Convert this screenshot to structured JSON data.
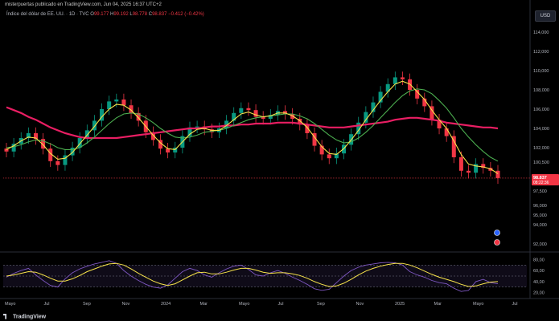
{
  "header": {
    "publisher": "misterpuertas publicado en TradingView.com, Jun 04, 2025 16:37 UTC+2"
  },
  "legend": {
    "symbol": "Índice del dólar de EE. UU. · 1D · TVC",
    "o_label": "O",
    "o": "99.177",
    "h_label": "H",
    "h": "99.192",
    "l_label": "L",
    "l": "98.778",
    "c_label": "C",
    "c": "98.837",
    "change": "−0.412 (−0.42%)"
  },
  "currency_button": "USD",
  "price_tag": {
    "value": "98.837",
    "countdown": "08:22:36"
  },
  "footer": {
    "brand": "TradingView"
  },
  "colors": {
    "up": "#089981",
    "down": "#f23645",
    "ma_fast": "#f7e34a",
    "ma_mid": "#4caf50",
    "ma_slow": "#e91e63",
    "rsi": "#7e57c2",
    "rsi_ma": "#f7e34a"
  },
  "chart_data": [
    {
      "type": "candlestick",
      "title": "Índice del dólar de EE. UU.",
      "price_axis_labels": [
        "114,000",
        "112,000",
        "110,000",
        "108,000",
        "106,000",
        "104,000",
        "102,000",
        "100,500",
        "97,500",
        "96,000",
        "95,000",
        "94,000",
        "92,000"
      ],
      "ylim": [
        91.5,
        115
      ],
      "time_axis_labels": [
        "Mayo",
        "Jul",
        "Sep",
        "Nov",
        "2024",
        "Mar",
        "Mayo",
        "Jul",
        "Sep",
        "Nov",
        "2025",
        "Mar",
        "Mayo",
        "Jul"
      ],
      "close_series": [
        101.6,
        102.4,
        103.0,
        103.5,
        102.9,
        101.9,
        100.6,
        100.2,
        101.2,
        102.0,
        103.0,
        103.8,
        104.8,
        106.0,
        106.8,
        107.0,
        106.4,
        105.6,
        104.8,
        103.6,
        102.8,
        101.9,
        101.5,
        102.0,
        103.2,
        104.1,
        104.2,
        103.9,
        103.6,
        104.0,
        104.8,
        105.6,
        106.1,
        105.9,
        105.2,
        105.0,
        105.4,
        105.8,
        105.5,
        105.0,
        104.4,
        103.5,
        102.2,
        101.3,
        100.9,
        101.4,
        102.3,
        103.4,
        104.6,
        105.7,
        106.7,
        107.8,
        108.6,
        109.3,
        109.1,
        108.0,
        107.1,
        106.3,
        104.9,
        104.0,
        103.2,
        101.0,
        99.6,
        99.4,
        100.3,
        99.9,
        99.6,
        98.84
      ],
      "ma_fast": [
        101.8,
        102.2,
        102.7,
        103.1,
        103.0,
        102.3,
        101.4,
        100.8,
        100.9,
        101.5,
        102.4,
        103.3,
        104.2,
        105.2,
        106.0,
        106.5,
        106.4,
        105.9,
        105.1,
        104.2,
        103.3,
        102.5,
        101.9,
        101.8,
        102.6,
        103.4,
        103.9,
        104.0,
        103.8,
        103.8,
        104.3,
        104.9,
        105.5,
        105.7,
        105.4,
        105.2,
        105.3,
        105.6,
        105.6,
        105.3,
        104.8,
        104.1,
        103.1,
        102.1,
        101.4,
        101.3,
        101.9,
        102.8,
        103.8,
        104.9,
        105.9,
        106.9,
        107.8,
        108.6,
        108.9,
        108.6,
        107.8,
        107.0,
        105.9,
        104.9,
        104.0,
        102.7,
        101.3,
        100.3,
        100.1,
        100.0,
        99.8,
        99.3
      ],
      "ma_mid": [
        102.0,
        102.1,
        102.3,
        102.6,
        102.8,
        102.7,
        102.4,
        102.0,
        101.8,
        101.8,
        102.0,
        102.5,
        103.1,
        103.8,
        104.5,
        105.1,
        105.5,
        105.6,
        105.5,
        105.1,
        104.6,
        104.0,
        103.5,
        103.1,
        103.0,
        103.1,
        103.3,
        103.6,
        103.7,
        103.8,
        104.0,
        104.3,
        104.6,
        104.9,
        105.1,
        105.2,
        105.3,
        105.4,
        105.5,
        105.5,
        105.3,
        105.0,
        104.5,
        103.9,
        103.3,
        102.8,
        102.5,
        102.6,
        103.0,
        103.6,
        104.3,
        105.1,
        105.9,
        106.7,
        107.4,
        107.9,
        108.1,
        108.0,
        107.6,
        106.9,
        106.1,
        105.1,
        104.0,
        103.1,
        102.3,
        101.6,
        101.0,
        100.6
      ],
      "ma_slow": [
        106.2,
        105.9,
        105.6,
        105.2,
        104.9,
        104.5,
        104.1,
        103.8,
        103.5,
        103.3,
        103.1,
        103.0,
        103.0,
        103.0,
        103.0,
        103.0,
        103.1,
        103.2,
        103.3,
        103.4,
        103.5,
        103.6,
        103.7,
        103.8,
        103.9,
        104.0,
        104.0,
        104.1,
        104.2,
        104.2,
        104.3,
        104.3,
        104.4,
        104.4,
        104.5,
        104.5,
        104.5,
        104.6,
        104.6,
        104.6,
        104.5,
        104.4,
        104.3,
        104.2,
        104.1,
        104.1,
        104.1,
        104.2,
        104.3,
        104.4,
        104.5,
        104.6,
        104.7,
        104.9,
        105.0,
        105.1,
        105.1,
        105.0,
        104.9,
        104.8,
        104.6,
        104.5,
        104.4,
        104.3,
        104.2,
        104.1,
        104.1,
        104.0
      ]
    },
    {
      "type": "line",
      "title": "RSI",
      "axis_labels": [
        "80,00",
        "60,00",
        "40,00",
        "20,00"
      ],
      "ylim": [
        15,
        85
      ],
      "rsi": [
        48,
        55,
        60,
        64,
        52,
        42,
        33,
        30,
        45,
        56,
        63,
        68,
        72,
        75,
        78,
        73,
        60,
        50,
        42,
        35,
        30,
        28,
        34,
        46,
        58,
        64,
        60,
        52,
        48,
        56,
        63,
        68,
        70,
        62,
        52,
        50,
        56,
        60,
        55,
        48,
        42,
        35,
        27,
        24,
        26,
        38,
        50,
        60,
        66,
        70,
        72,
        74,
        75,
        74,
        70,
        58,
        52,
        48,
        42,
        38,
        36,
        28,
        22,
        24,
        40,
        44,
        38,
        36
      ],
      "rsi_ma": [
        50,
        52,
        55,
        58,
        57,
        52,
        46,
        41,
        41,
        45,
        51,
        58,
        63,
        68,
        72,
        73,
        70,
        63,
        55,
        48,
        41,
        36,
        33,
        36,
        43,
        50,
        56,
        57,
        54,
        54,
        57,
        61,
        64,
        64,
        61,
        57,
        55,
        56,
        56,
        54,
        51,
        46,
        40,
        35,
        31,
        32,
        37,
        44,
        52,
        59,
        64,
        68,
        71,
        73,
        73,
        70,
        65,
        59,
        53,
        48,
        44,
        40,
        35,
        31,
        32,
        36,
        39,
        40
      ]
    }
  ]
}
